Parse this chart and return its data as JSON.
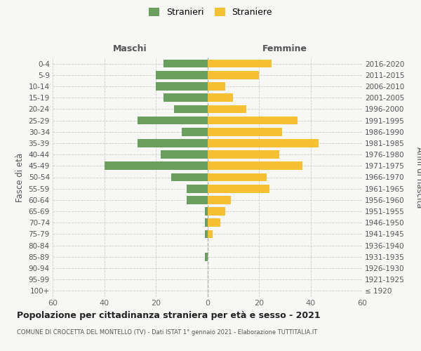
{
  "age_groups": [
    "100+",
    "95-99",
    "90-94",
    "85-89",
    "80-84",
    "75-79",
    "70-74",
    "65-69",
    "60-64",
    "55-59",
    "50-54",
    "45-49",
    "40-44",
    "35-39",
    "30-34",
    "25-29",
    "20-24",
    "15-19",
    "10-14",
    "5-9",
    "0-4"
  ],
  "birth_years": [
    "≤ 1920",
    "1921-1925",
    "1926-1930",
    "1931-1935",
    "1936-1940",
    "1941-1945",
    "1946-1950",
    "1951-1955",
    "1956-1960",
    "1961-1965",
    "1966-1970",
    "1971-1975",
    "1976-1980",
    "1981-1985",
    "1986-1990",
    "1991-1995",
    "1996-2000",
    "2001-2005",
    "2006-2010",
    "2011-2015",
    "2016-2020"
  ],
  "males": [
    0,
    0,
    0,
    1,
    0,
    1,
    1,
    1,
    8,
    8,
    14,
    40,
    18,
    27,
    10,
    27,
    13,
    17,
    20,
    20,
    17
  ],
  "females": [
    0,
    0,
    0,
    0,
    0,
    2,
    5,
    7,
    9,
    24,
    23,
    37,
    28,
    43,
    29,
    35,
    15,
    10,
    7,
    20,
    25
  ],
  "male_color": "#6a9f5e",
  "female_color": "#f5c031",
  "background_color": "#f7f7f5",
  "grid_color": "#cccccc",
  "title": "Popolazione per cittadinanza straniera per età e sesso - 2021",
  "subtitle": "COMUNE DI CROCETTA DEL MONTELLO (TV) - Dati ISTAT 1° gennaio 2021 - Elaborazione TUTTITALIA.IT",
  "label_maschi": "Maschi",
  "label_femmine": "Femmine",
  "ylabel_left": "Fasce di età",
  "ylabel_right": "Anni di nascita",
  "legend_males": "Stranieri",
  "legend_females": "Straniere",
  "xlim": 60
}
